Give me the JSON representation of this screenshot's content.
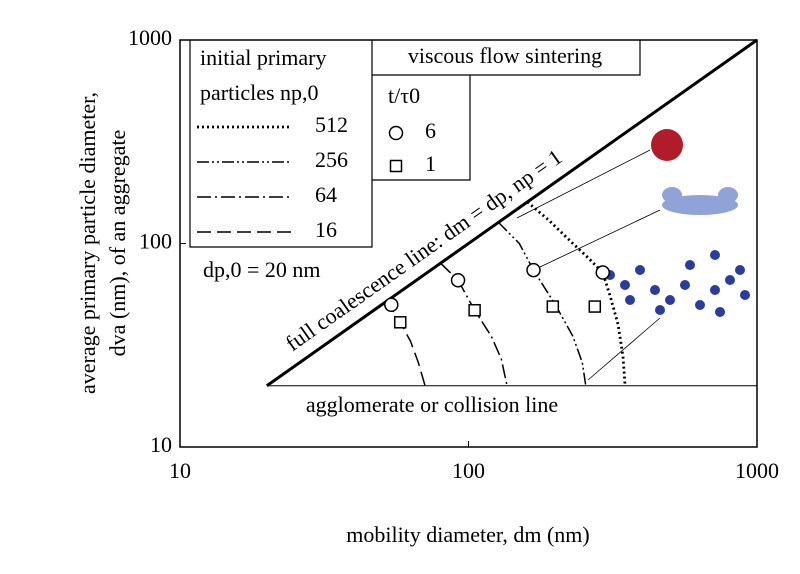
{
  "chart_data": {
    "type": "scatter",
    "x_label": "mobility diameter, dm (nm)",
    "y_label": [
      "average primary particle diameter,",
      "dva (nm), of an aggregate"
    ],
    "log_x": true,
    "log_y": true,
    "xlim": [
      10,
      1000
    ],
    "ylim": [
      10,
      1000
    ],
    "xticks": [
      10,
      100,
      1000
    ],
    "yticks": [
      10,
      100,
      1000
    ],
    "color": "#000000",
    "coalescence_line": {
      "label": "full coalescence line: dm = dp, np = 1",
      "x": [
        20,
        1000
      ],
      "values": [
        20,
        1000
      ]
    },
    "collision_line": {
      "label": "agglomerate or collision line",
      "x": [
        20,
        1000
      ],
      "values": [
        20,
        20
      ]
    },
    "annotation": "dp,0 = 20 nm",
    "line_legend_title": [
      "initial primary",
      "particles np,0"
    ],
    "marker_legend_title": [
      "viscous flow sintering",
      "t/τ0"
    ],
    "series": [
      {
        "name": "512",
        "style": "dotted",
        "x": [
          160,
          190,
          230,
          260,
          292,
          310,
          330,
          343,
          349
        ],
        "values": [
          160,
          130,
          100,
          85,
          72,
          55,
          40,
          28,
          20
        ]
      },
      {
        "name": "256",
        "style": "dash-dot-dot",
        "x": [
          127,
          150,
          168,
          200,
          230,
          248,
          255
        ],
        "values": [
          127,
          100,
          74,
          50,
          35,
          26,
          20
        ]
      },
      {
        "name": "64",
        "style": "dash-dot",
        "x": [
          80,
          92,
          105,
          120,
          130,
          136
        ],
        "values": [
          80,
          66,
          47,
          35,
          27,
          20
        ]
      },
      {
        "name": "16",
        "style": "dashed",
        "x": [
          50.4,
          54,
          58,
          63,
          67,
          70.7
        ],
        "values": [
          50.4,
          48,
          41,
          33,
          26,
          20
        ]
      },
      {
        "name": "6",
        "marker": "circle",
        "x": [
          54,
          92,
          168,
          292
        ],
        "values": [
          50,
          66,
          74,
          72
        ]
      },
      {
        "name": "1",
        "marker": "square",
        "x": [
          58,
          105,
          196,
          274
        ],
        "values": [
          41,
          47,
          49,
          49
        ]
      }
    ]
  }
}
